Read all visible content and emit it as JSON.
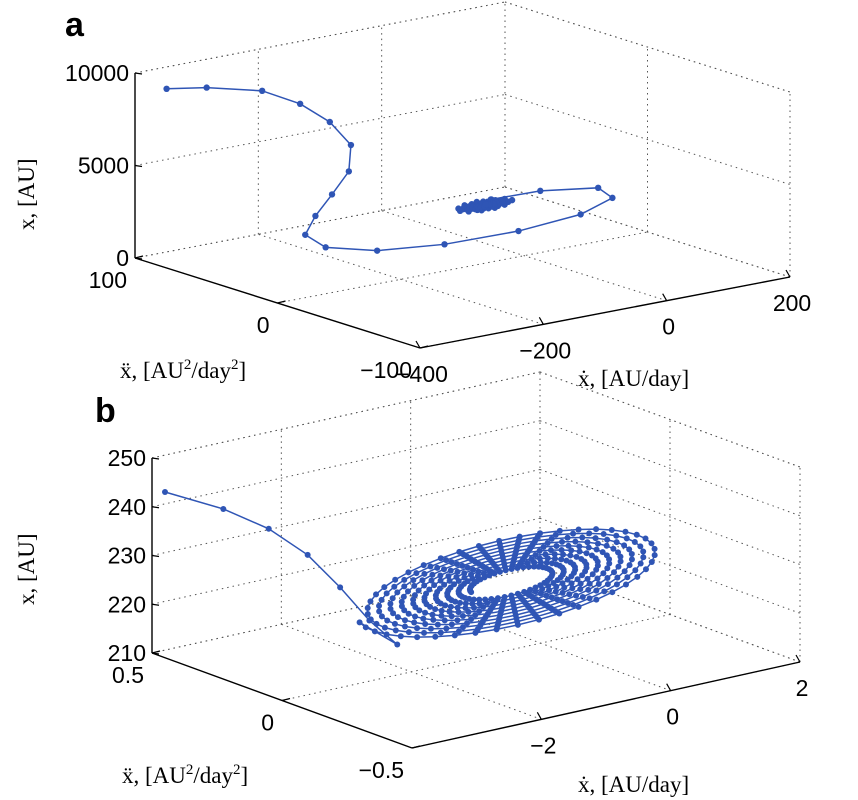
{
  "chart_data": [
    {
      "panel": "a",
      "type": "line",
      "subtype": "3d-trajectory",
      "xlabel": "ẋ, [AU/day]",
      "ylabel": "ẍ, [AU²/day²]",
      "zlabel": "x, [AU]",
      "xlim": [
        -400,
        200
      ],
      "ylim": [
        -100,
        100
      ],
      "zlim": [
        0,
        10000
      ],
      "xticks": [
        "−400",
        "−200",
        "0",
        "200"
      ],
      "yticks": [
        "100",
        "0",
        "−100"
      ],
      "zticks": [
        "0",
        "5000",
        "10000"
      ],
      "grid": true,
      "series": [
        {
          "color": "#2f55b5",
          "marker": "dot",
          "points": [
            {
              "x": -395,
              "y": 80,
              "z": 9600
            },
            {
              "x": -330,
              "y": 80,
              "z": 9250
            },
            {
              "x": -240,
              "y": 80,
              "z": 8500
            },
            {
              "x": -190,
              "y": 75,
              "z": 7600
            },
            {
              "x": -165,
              "y": 65,
              "z": 6700
            },
            {
              "x": -170,
              "y": 48,
              "z": 5900
            },
            {
              "x": -215,
              "y": 30,
              "z": 5200
            },
            {
              "x": -270,
              "y": 18,
              "z": 4600
            },
            {
              "x": -320,
              "y": 8,
              "z": 4000
            },
            {
              "x": -355,
              "y": 0,
              "z": 3400
            },
            {
              "x": -345,
              "y": -10,
              "z": 2900
            },
            {
              "x": -280,
              "y": -18,
              "z": 2500
            },
            {
              "x": -180,
              "y": -22,
              "z": 2300
            },
            {
              "x": -60,
              "y": -22,
              "z": 2250
            },
            {
              "x": 50,
              "y": -18,
              "z": 2350
            },
            {
              "x": 120,
              "y": -10,
              "z": 2600
            },
            {
              "x": 120,
              "y": 0,
              "z": 2900
            },
            {
              "x": 40,
              "y": 6,
              "z": 3100
            },
            {
              "x": -40,
              "y": 6,
              "z": 3150
            },
            {
              "x": -60,
              "y": 2,
              "z": 3050
            }
          ]
        }
      ]
    },
    {
      "panel": "b",
      "type": "line",
      "subtype": "3d-trajectory",
      "xlabel": "ẋ, [AU/day]",
      "ylabel": "ẍ, [AU²/day²]",
      "zlabel": "x, [AU]",
      "xlim": [
        -4,
        2
      ],
      "ylim": [
        -0.5,
        0.5
      ],
      "zlim": [
        210,
        250
      ],
      "xticks": [
        "−2",
        "0",
        "2"
      ],
      "yticks": [
        "0.5",
        "0",
        "−0.5"
      ],
      "zticks": [
        "210",
        "220",
        "230",
        "240",
        "250"
      ],
      "grid": true,
      "series": [
        {
          "color": "#2f55b5",
          "marker": "dot",
          "description": "approach curve followed by a dense set of nested elliptical loops",
          "approach": [
            {
              "x": -4.0,
              "y": 0.45,
              "z": 244
            },
            {
              "x": -3.5,
              "y": 0.35,
              "z": 241
            },
            {
              "x": -3.2,
              "y": 0.25,
              "z": 238
            },
            {
              "x": -3.0,
              "y": 0.15,
              "z": 234
            },
            {
              "x": -2.9,
              "y": 0.05,
              "z": 229
            },
            {
              "x": -2.85,
              "y": -0.05,
              "z": 224
            },
            {
              "x": -2.7,
              "y": -0.12,
              "z": 220
            }
          ],
          "loops_center": {
            "x": -0.5,
            "y": 0.0,
            "z": 224
          },
          "loops_count": 10
        }
      ]
    }
  ],
  "panels": {
    "a": {
      "letter": "a",
      "zlabel": "x, [AU]",
      "xlabel_prefix": "ẋ, ",
      "xlabel_unit": "[AU/day]",
      "ylabel_prefix": "ẍ, ",
      "ylabel_unit_a": "[AU",
      "ylabel_unit_b": "/day",
      "ylabel_unit_c": "]",
      "sup": "2"
    },
    "b": {
      "letter": "b",
      "zlabel": "x, [AU]",
      "xlabel_prefix": "ẋ, ",
      "xlabel_unit": "[AU/day]",
      "ylabel_prefix": "ẍ, ",
      "ylabel_unit_a": "[AU",
      "ylabel_unit_b": "/day",
      "ylabel_unit_c": "]",
      "sup": "2"
    }
  }
}
